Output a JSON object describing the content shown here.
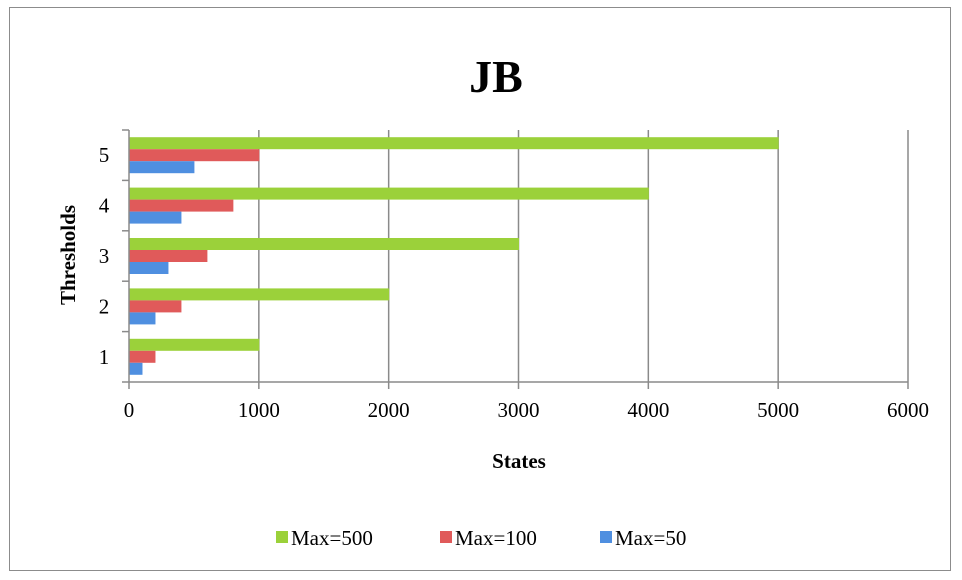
{
  "chart_data": {
    "type": "bar",
    "orientation": "horizontal",
    "title": "JB",
    "xlabel": "States",
    "ylabel": "Thresholds",
    "categories": [
      "1",
      "2",
      "3",
      "4",
      "5"
    ],
    "xlim": [
      0,
      6000
    ],
    "xticks": [
      "0",
      "1000",
      "2000",
      "3000",
      "4000",
      "5000",
      "6000"
    ],
    "grid": true,
    "legend_position": "bottom",
    "series": [
      {
        "name": "Max=500",
        "values": [
          1000,
          2000,
          3000,
          4000,
          5000
        ],
        "color": "#9bd13a"
      },
      {
        "name": "Max=100",
        "values": [
          200,
          400,
          600,
          800,
          1000
        ],
        "color": "#e05a5a"
      },
      {
        "name": "Max=50",
        "values": [
          100,
          200,
          300,
          400,
          500
        ],
        "color": "#4f8fe0"
      }
    ]
  }
}
